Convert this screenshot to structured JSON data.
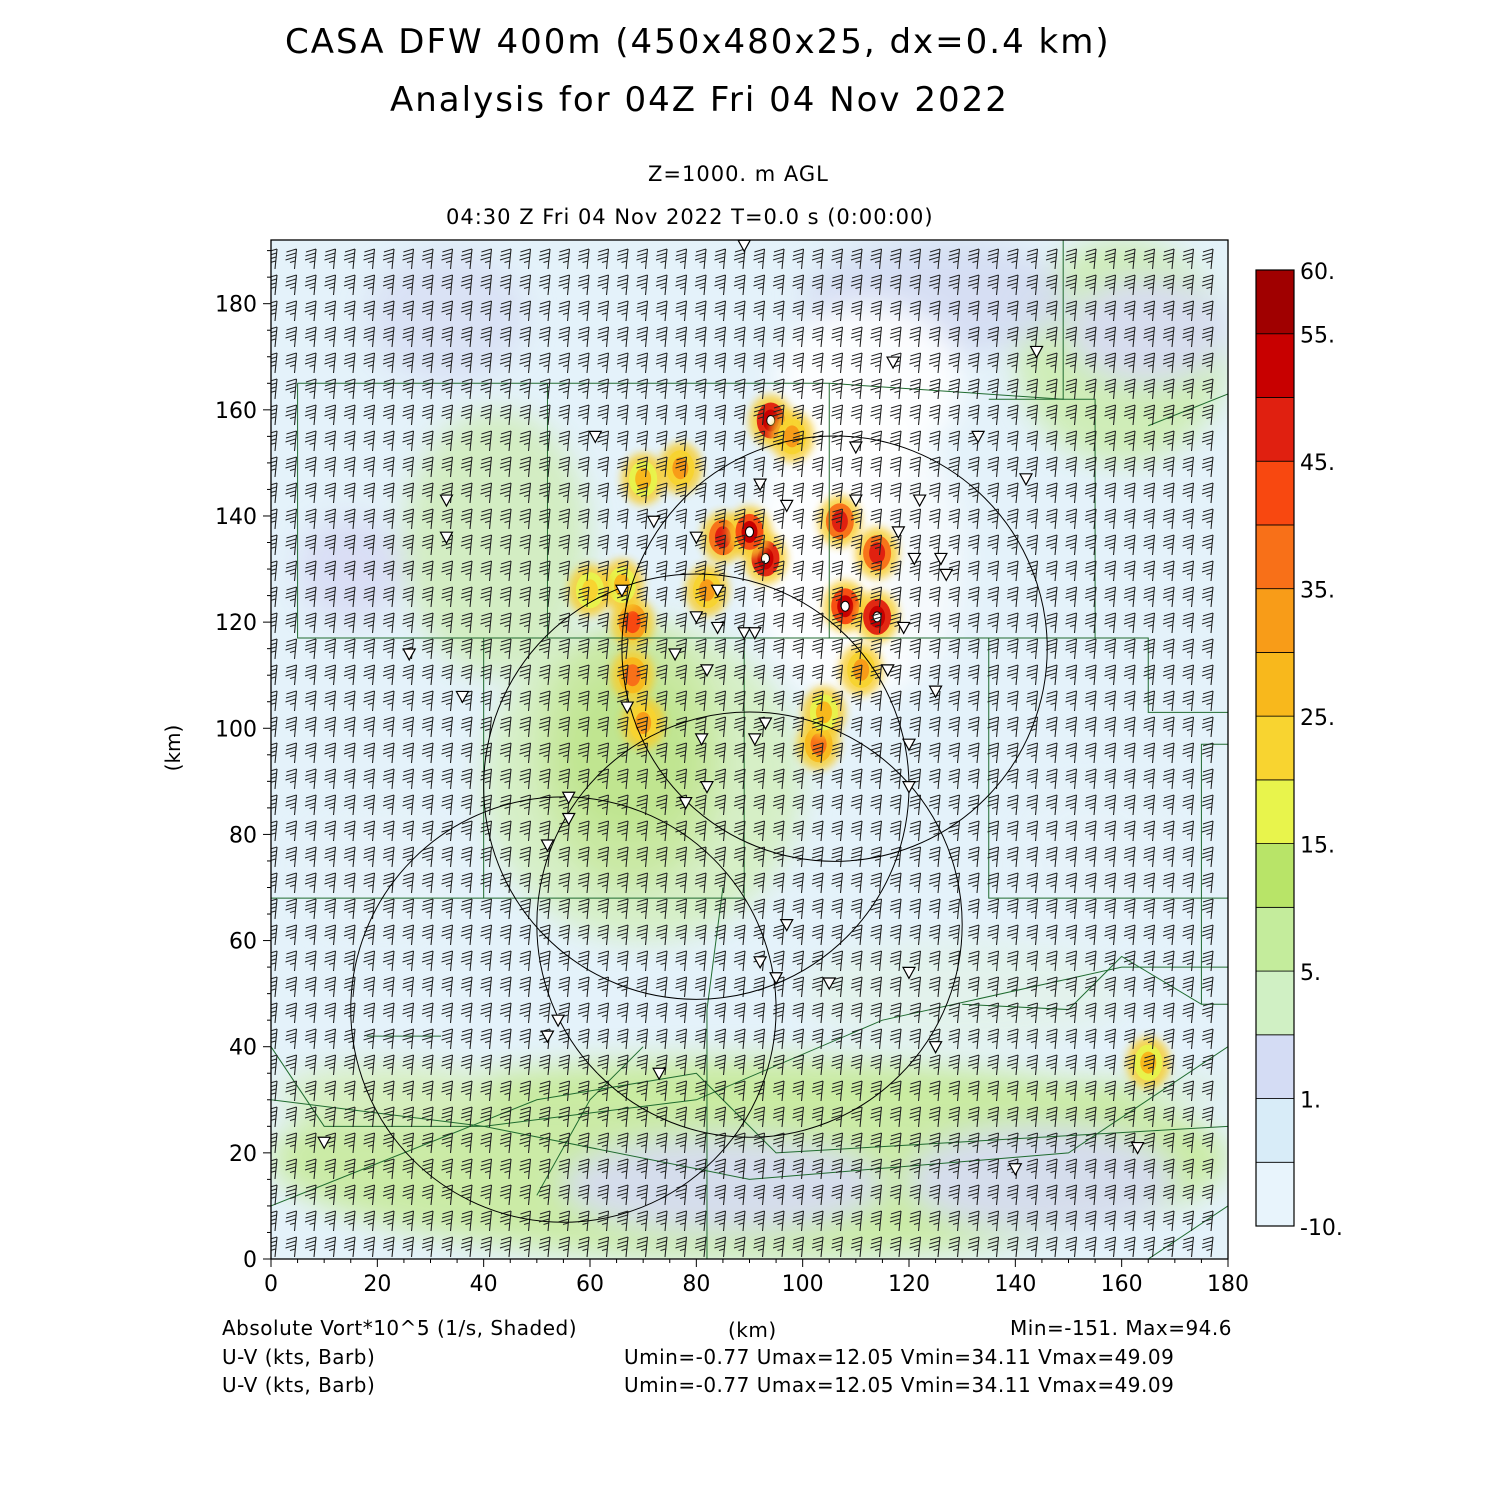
{
  "header": {
    "title_line1": "CASA DFW 400m (450x480x25, dx=0.4 km)",
    "title_line2": "Analysis for 04Z Fri 04 Nov 2022",
    "level": "Z=1000. m AGL",
    "valid_time": "04:30 Z Fri 04 Nov 2022     T=0.0 s (0:00:00)"
  },
  "footer": {
    "field1": "Absolute Vort*10^5 (1/s, Shaded)",
    "field2": "U-V (kts, Barb)",
    "field3": "U-V (kts, Barb)",
    "xunit": "(km)",
    "minmax": "Min=-151. Max=94.6",
    "uv_stats1": "Umin=-0.77  Umax=12.05  Vmin=34.11  Vmax=49.09",
    "uv_stats2": "Umin=-0.77  Umax=12.05  Vmin=34.11  Vmax=49.09"
  },
  "chart_data": {
    "type": "heatmap",
    "field": "Absolute vorticity x10^5 (1/s)",
    "xlabel": "",
    "ylabel": "(km)",
    "xlim": [
      0,
      180
    ],
    "ylim": [
      0,
      192
    ],
    "xticks": [
      "0",
      "20",
      "40",
      "60",
      "80",
      "100",
      "120",
      "140",
      "160",
      "180"
    ],
    "yticks": [
      "0",
      "20",
      "40",
      "60",
      "80",
      "100",
      "120",
      "140",
      "160",
      "180"
    ],
    "colorbar": {
      "levels": [
        -10,
        1,
        5,
        15,
        25,
        35,
        45,
        55,
        60
      ],
      "labels": [
        "-10.",
        "1.",
        "5.",
        "15.",
        "25.",
        "35.",
        "45.",
        "55.",
        "60."
      ],
      "colors": [
        "#e8f4fc",
        "#d8ecf8",
        "#d4dcf4",
        "#d0f0c4",
        "#c4ec9c",
        "#b8e468",
        "#e8f44c",
        "#f8d430",
        "#f8b81c",
        "#f89c18",
        "#f87018",
        "#f84810",
        "#e02010",
        "#c80000",
        "#a00000"
      ]
    },
    "barb_range_kts": {
      "umin": -0.77,
      "umax": 12.05,
      "vmin": 34.11,
      "vmax": 49.09
    },
    "value_range": {
      "min": -151,
      "max": 94.6
    },
    "radar_range_rings": [
      {
        "cx": 106,
        "cy": 115,
        "r": 40
      },
      {
        "cx": 80,
        "cy": 89,
        "r": 40
      },
      {
        "cx": 90,
        "cy": 63,
        "r": 40
      },
      {
        "cx": 55,
        "cy": 47,
        "r": 40
      }
    ],
    "vortex_cores": [
      {
        "x": 93,
        "y": 132,
        "v": 60
      },
      {
        "x": 94,
        "y": 158,
        "v": 60
      },
      {
        "x": 108,
        "y": 123,
        "v": 55
      },
      {
        "x": 114,
        "y": 121,
        "v": 60
      },
      {
        "x": 114,
        "y": 133,
        "v": 50
      },
      {
        "x": 107,
        "y": 139,
        "v": 50
      },
      {
        "x": 85,
        "y": 136,
        "v": 50
      },
      {
        "x": 90,
        "y": 137,
        "v": 55
      },
      {
        "x": 68,
        "y": 120,
        "v": 45
      },
      {
        "x": 68,
        "y": 110,
        "v": 40
      },
      {
        "x": 70,
        "y": 101,
        "v": 35
      },
      {
        "x": 103,
        "y": 97,
        "v": 40
      },
      {
        "x": 111,
        "y": 111,
        "v": 35
      },
      {
        "x": 77,
        "y": 149,
        "v": 35
      },
      {
        "x": 70,
        "y": 147,
        "v": 30
      },
      {
        "x": 82,
        "y": 126,
        "v": 35
      },
      {
        "x": 98,
        "y": 155,
        "v": 35
      },
      {
        "x": 165,
        "y": 37,
        "v": 30
      },
      {
        "x": 66,
        "y": 127,
        "v": 30
      },
      {
        "x": 60,
        "y": 126,
        "v": 25
      },
      {
        "x": 104,
        "y": 103,
        "v": 30
      }
    ],
    "stations": [
      [
        89,
        191
      ],
      [
        117,
        169
      ],
      [
        144,
        171
      ],
      [
        61,
        155
      ],
      [
        110,
        153
      ],
      [
        133,
        155
      ],
      [
        92,
        146
      ],
      [
        142,
        147
      ],
      [
        33,
        143
      ],
      [
        110,
        143
      ],
      [
        122,
        143
      ],
      [
        97,
        142
      ],
      [
        72,
        139
      ],
      [
        80,
        136
      ],
      [
        118,
        137
      ],
      [
        33,
        136
      ],
      [
        126,
        132
      ],
      [
        127,
        129
      ],
      [
        121,
        132
      ],
      [
        66,
        126
      ],
      [
        84,
        126
      ],
      [
        80,
        121
      ],
      [
        84,
        119
      ],
      [
        89,
        118
      ],
      [
        91,
        118
      ],
      [
        119,
        119
      ],
      [
        26,
        114
      ],
      [
        76,
        114
      ],
      [
        82,
        111
      ],
      [
        116,
        111
      ],
      [
        36,
        106
      ],
      [
        125,
        107
      ],
      [
        67,
        104
      ],
      [
        93,
        101
      ],
      [
        81,
        98
      ],
      [
        91,
        98
      ],
      [
        120,
        97
      ],
      [
        56,
        87
      ],
      [
        78,
        86
      ],
      [
        82,
        89
      ],
      [
        120,
        89
      ],
      [
        56,
        83
      ],
      [
        52,
        78
      ],
      [
        97,
        63
      ],
      [
        92,
        56
      ],
      [
        95,
        53
      ],
      [
        105,
        52
      ],
      [
        120,
        54
      ],
      [
        54,
        45
      ],
      [
        52,
        42
      ],
      [
        125,
        40
      ],
      [
        73,
        35
      ],
      [
        10,
        22
      ],
      [
        163,
        21
      ],
      [
        140,
        17
      ]
    ]
  }
}
